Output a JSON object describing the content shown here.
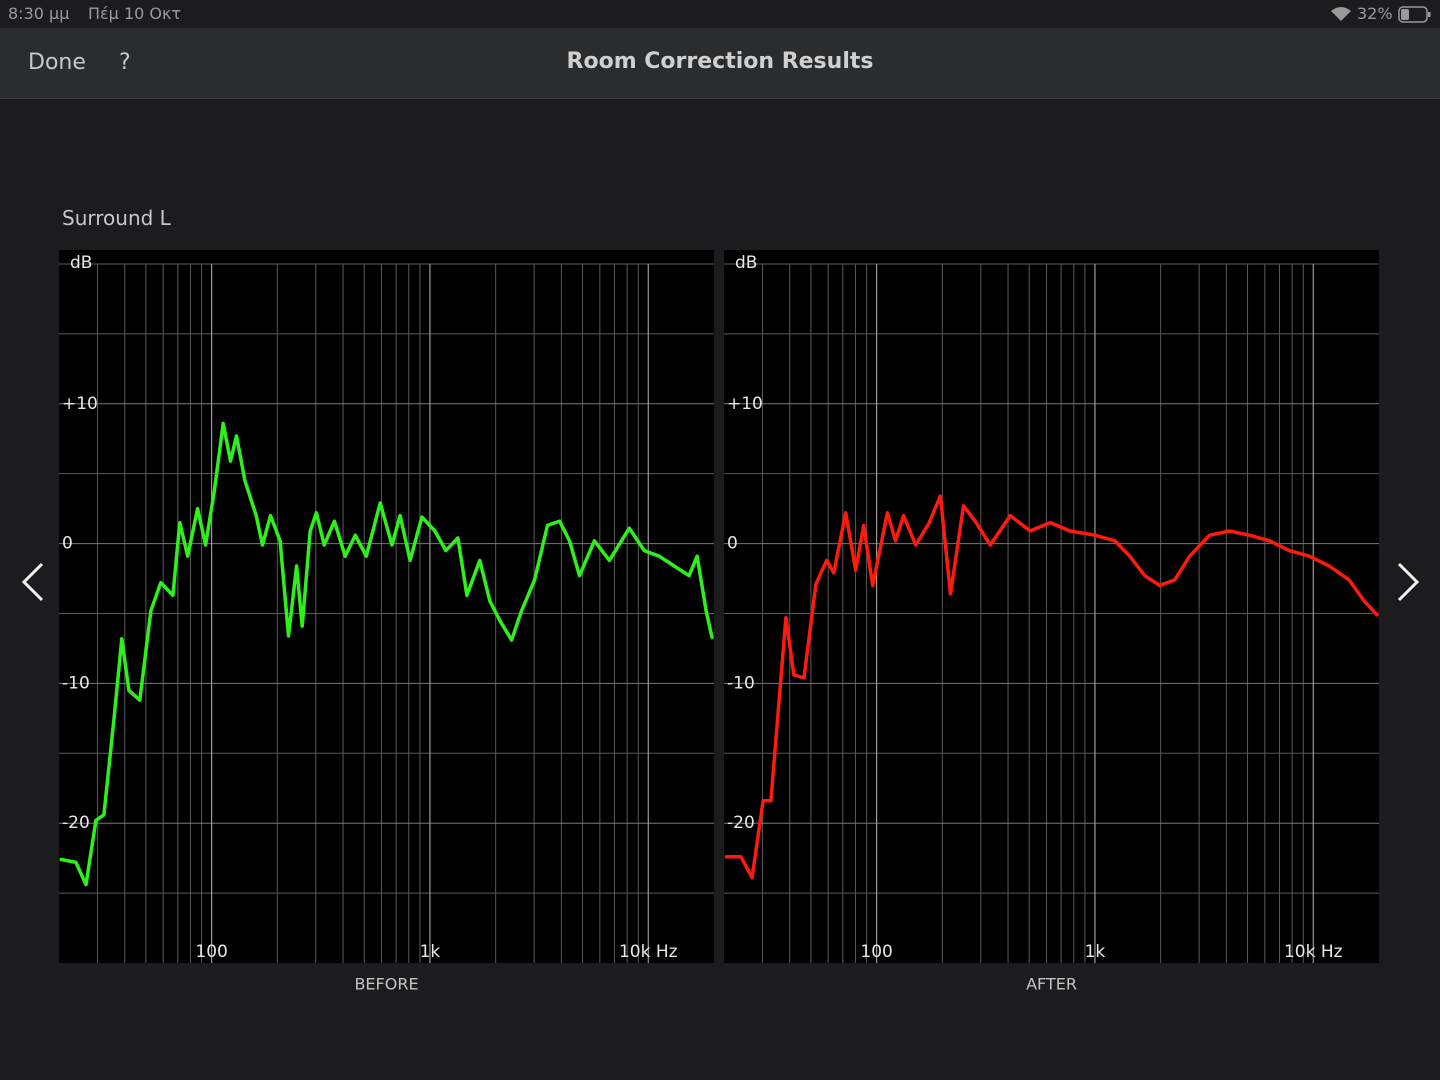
{
  "status_bar": {
    "time": "8:30 μμ",
    "date": "Πέμ 10 Οκτ",
    "battery": "32%"
  },
  "nav": {
    "done": "Done",
    "help": "?",
    "title": "Room Correction Results"
  },
  "channel": "Surround L",
  "chart_data": [
    {
      "type": "line",
      "title": "BEFORE",
      "y_label": "dB",
      "xscale": "log",
      "xlim": [
        20,
        20000
      ],
      "ylim": [
        -30,
        21
      ],
      "xticks": [
        100,
        {
          "value": 1000,
          "label": "1k"
        },
        {
          "value": 10000,
          "label": "10k Hz"
        }
      ],
      "minor_xticks": [
        30,
        40,
        50,
        60,
        70,
        80,
        90,
        200,
        300,
        400,
        500,
        600,
        700,
        800,
        900,
        2000,
        3000,
        4000,
        5000,
        6000,
        7000,
        8000,
        9000
      ],
      "yticks": [
        {
          "value": 10,
          "label": "+10"
        },
        0,
        -10,
        -20
      ],
      "minor_yticks": [
        20,
        15,
        5,
        -5,
        -15,
        -25
      ],
      "x": [
        20.5,
        23.9,
        26.6,
        29.5,
        32.1,
        35.7,
        38.8,
        41.8,
        46.9,
        52.7,
        58.5,
        66.5,
        71.5,
        77.7,
        86.3,
        93.9,
        103,
        113,
        122,
        130,
        142,
        160,
        171,
        186,
        206,
        225,
        245,
        260,
        283,
        302,
        328,
        365,
        409,
        455,
        511,
        592,
        670,
        730,
        811,
        919,
        1054,
        1183,
        1343,
        1476,
        1692,
        1880,
        2089,
        2366,
        2630,
        3015,
        3456,
        3924,
        4356,
        4842,
        5667,
        6637,
        8185,
        9594,
        11220,
        13150,
        15380,
        16740,
        18410,
        19590
      ],
      "series": [
        {
          "color": "#2ef01a",
          "values": [
            -22.6,
            -22.8,
            -24.4,
            -19.8,
            -19.4,
            -12.6,
            -6.8,
            -10.5,
            -11.2,
            -4.8,
            -2.8,
            -3.7,
            1.5,
            -0.9,
            2.5,
            -0.1,
            3.8,
            8.6,
            5.9,
            7.7,
            4.5,
            2.0,
            -0.1,
            2.0,
            0.2,
            -6.6,
            -1.6,
            -5.9,
            0.9,
            2.2,
            -0.1,
            1.6,
            -0.9,
            0.6,
            -0.9,
            2.9,
            -0.1,
            2.0,
            -1.2,
            1.9,
            0.9,
            -0.5,
            0.4,
            -3.7,
            -1.2,
            -4.1,
            -5.5,
            -6.9,
            -4.8,
            -2.6,
            1.3,
            1.6,
            0.2,
            -2.3,
            0.2,
            -1.2,
            1.1,
            -0.5,
            -0.9,
            -1.6,
            -2.3,
            -0.9,
            -4.8,
            -6.7
          ]
        }
      ]
    },
    {
      "type": "line",
      "title": "AFTER",
      "y_label": "dB",
      "xscale": "log",
      "xlim": [
        20,
        20000
      ],
      "ylim": [
        -30,
        21
      ],
      "xticks": [
        100,
        {
          "value": 1000,
          "label": "1k"
        },
        {
          "value": 10000,
          "label": "10k Hz"
        }
      ],
      "minor_xticks": [
        30,
        40,
        50,
        60,
        70,
        80,
        90,
        200,
        300,
        400,
        500,
        600,
        700,
        800,
        900,
        2000,
        3000,
        4000,
        5000,
        6000,
        7000,
        8000,
        9000
      ],
      "yticks": [
        {
          "value": 10,
          "label": "+10"
        },
        0,
        -10,
        -20
      ],
      "minor_yticks": [
        20,
        15,
        5,
        -5,
        -15,
        -25
      ],
      "x": [
        20.5,
        23.9,
        26.9,
        30.2,
        32.8,
        38.4,
        41.8,
        46.5,
        52.7,
        59.1,
        63.7,
        72.2,
        80.2,
        87.3,
        96,
        112,
        122,
        133,
        151,
        173,
        196,
        218,
        250,
        283,
        332,
        409,
        505,
        624,
        769,
        1000,
        1234,
        1445,
        1692,
        1982,
        2319,
        2716,
        3350,
        4130,
        5100,
        6300,
        7760,
        9590,
        11830,
        14590,
        17100,
        19600
      ],
      "series": [
        {
          "color": "#ff1a0e",
          "values": [
            -22.4,
            -22.4,
            -23.9,
            -18.4,
            -18.4,
            -5.3,
            -9.4,
            -9.6,
            -2.9,
            -1.2,
            -2.1,
            2.2,
            -1.9,
            1.3,
            -3.0,
            2.2,
            0.2,
            2.0,
            -0.1,
            1.4,
            3.4,
            -3.6,
            2.7,
            1.6,
            -0.1,
            2.0,
            0.9,
            1.5,
            0.9,
            0.6,
            0.2,
            -0.9,
            -2.3,
            -3.0,
            -2.6,
            -0.9,
            0.6,
            0.9,
            0.6,
            0.2,
            -0.5,
            -0.9,
            -1.6,
            -2.6,
            -4.1,
            -5.1
          ]
        }
      ]
    }
  ]
}
